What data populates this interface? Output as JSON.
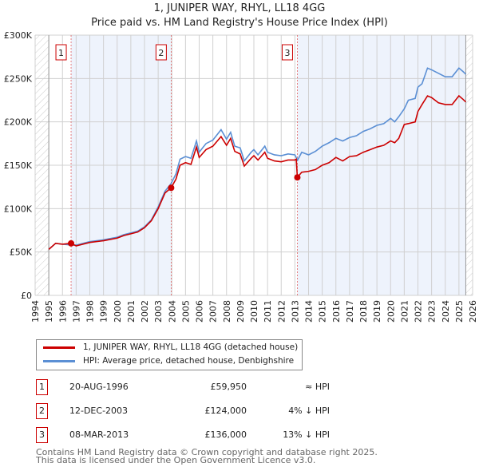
{
  "chart_data": {
    "type": "line",
    "title": "1, JUNIPER WAY, RHYL, LL18 4GG",
    "subtitle": "Price paid vs. HM Land Registry's House Price Index (HPI)",
    "xlim": [
      1994,
      2026
    ],
    "ylim": [
      0,
      300000
    ],
    "x_ticks": [
      "1994",
      "1995",
      "1996",
      "1997",
      "1998",
      "1999",
      "2000",
      "2001",
      "2002",
      "2003",
      "2004",
      "2005",
      "2006",
      "2007",
      "2008",
      "2009",
      "2010",
      "2011",
      "2012",
      "2013",
      "2014",
      "2015",
      "2016",
      "2017",
      "2018",
      "2019",
      "2020",
      "2021",
      "2022",
      "2023",
      "2024",
      "2025",
      "2026"
    ],
    "y_ticks": [
      {
        "v": 0,
        "label": "£0"
      },
      {
        "v": 50000,
        "label": "£50K"
      },
      {
        "v": 100000,
        "label": "£100K"
      },
      {
        "v": 150000,
        "label": "£150K"
      },
      {
        "v": 200000,
        "label": "£200K"
      },
      {
        "v": 250000,
        "label": "£250K"
      },
      {
        "v": 300000,
        "label": "£300K"
      }
    ],
    "grid": true,
    "series": [
      {
        "name": "1, JUNIPER WAY, RHYL, LL18 4GG (detached house)",
        "color": "#cc0000",
        "x": [
          1995,
          1995.5,
          1996,
          1996.63,
          1997,
          1998,
          1999,
          2000,
          2000.5,
          2001,
          2001.5,
          2002,
          2002.5,
          2003,
          2003.5,
          2003.95,
          2004.3,
          2004.6,
          2005,
          2005.4,
          2005.8,
          2006,
          2006.5,
          2007,
          2007.6,
          2008,
          2008.3,
          2008.6,
          2009,
          2009.3,
          2009.8,
          2010,
          2010.3,
          2010.8,
          2011,
          2011.5,
          2012,
          2012.5,
          2013,
          2013.1,
          2013.18,
          2013.5,
          2014,
          2014.5,
          2015,
          2015.5,
          2016,
          2016.5,
          2017,
          2017.5,
          2018,
          2018.5,
          2019,
          2019.5,
          2020,
          2020.3,
          2020.6,
          2021,
          2021.3,
          2021.8,
          2022,
          2022.3,
          2022.7,
          2023,
          2023.5,
          2024,
          2024.5,
          2025,
          2025.3,
          2025.5
        ],
        "y": [
          53000,
          60000,
          59000,
          59950,
          57000,
          61000,
          63000,
          66000,
          69000,
          71000,
          73000,
          78000,
          86000,
          100000,
          118000,
          124000,
          134000,
          150000,
          153000,
          151000,
          171000,
          159000,
          168000,
          172000,
          183000,
          173000,
          181000,
          166000,
          163000,
          149000,
          158000,
          161000,
          156000,
          165000,
          158000,
          155000,
          154000,
          156000,
          156000,
          157000,
          136000,
          142000,
          143000,
          145000,
          150000,
          153000,
          159000,
          155000,
          160000,
          161000,
          165000,
          168000,
          171000,
          173000,
          178000,
          176000,
          181000,
          197000,
          198000,
          200000,
          212000,
          220000,
          230000,
          228000,
          222000,
          220000,
          220000,
          230000,
          226000,
          223000
        ]
      },
      {
        "name": "HPI: Average price, detached house, Denbighshire",
        "color": "#5b8fd4",
        "x": [
          1995,
          1995.5,
          1996,
          1996.63,
          1997,
          1998,
          1999,
          2000,
          2000.5,
          2001,
          2001.5,
          2002,
          2002.5,
          2003,
          2003.5,
          2003.95,
          2004.3,
          2004.6,
          2005,
          2005.4,
          2005.8,
          2006,
          2006.5,
          2007,
          2007.6,
          2008,
          2008.3,
          2008.6,
          2009,
          2009.3,
          2009.8,
          2010,
          2010.3,
          2010.8,
          2011,
          2011.5,
          2012,
          2012.5,
          2013,
          2013.2,
          2013.5,
          2014,
          2014.5,
          2015,
          2015.5,
          2016,
          2016.5,
          2017,
          2017.5,
          2018,
          2018.5,
          2019,
          2019.5,
          2020,
          2020.3,
          2020.6,
          2021,
          2021.3,
          2021.8,
          2022,
          2022.3,
          2022.7,
          2023,
          2023.5,
          2024,
          2024.5,
          2025,
          2025.3,
          2025.5
        ],
        "y": [
          53000,
          60000,
          59000,
          58000,
          58000,
          62000,
          64000,
          67000,
          70000,
          72000,
          74000,
          79000,
          87000,
          102000,
          120000,
          129000,
          140000,
          157000,
          160000,
          158000,
          178000,
          165000,
          175000,
          179000,
          191000,
          180000,
          188000,
          172000,
          170000,
          155000,
          165000,
          168000,
          162000,
          172000,
          165000,
          162000,
          161000,
          163000,
          162000,
          156000,
          165000,
          162000,
          166000,
          172000,
          176000,
          181000,
          178000,
          182000,
          184000,
          189000,
          192000,
          196000,
          198000,
          204000,
          200000,
          206000,
          215000,
          225000,
          227000,
          240000,
          244000,
          262000,
          260000,
          256000,
          252000,
          252000,
          262000,
          258000,
          255000
        ]
      }
    ],
    "sales": [
      {
        "id": "1",
        "x": 1996.63,
        "y": 59950,
        "date": "20-AUG-1996",
        "price": "£59,950",
        "rel": "≈ HPI"
      },
      {
        "id": "2",
        "x": 2003.95,
        "y": 124000,
        "date": "12-DEC-2003",
        "price": "£124,000",
        "rel": "4% ↓ HPI"
      },
      {
        "id": "3",
        "x": 2013.18,
        "y": 136000,
        "date": "08-MAR-2013",
        "price": "£136,000",
        "rel": "13% ↓ HPI"
      }
    ],
    "shaded_ranges": [
      [
        1996.63,
        2003.95
      ],
      [
        2013.18,
        2025.5
      ]
    ],
    "hatched_ranges": [
      [
        1994,
        1995
      ],
      [
        2025.5,
        2026
      ]
    ]
  },
  "footer": [
    "Contains HM Land Registry data © Crown copyright and database right 2025.",
    "This data is licensed under the Open Government Licence v3.0."
  ]
}
